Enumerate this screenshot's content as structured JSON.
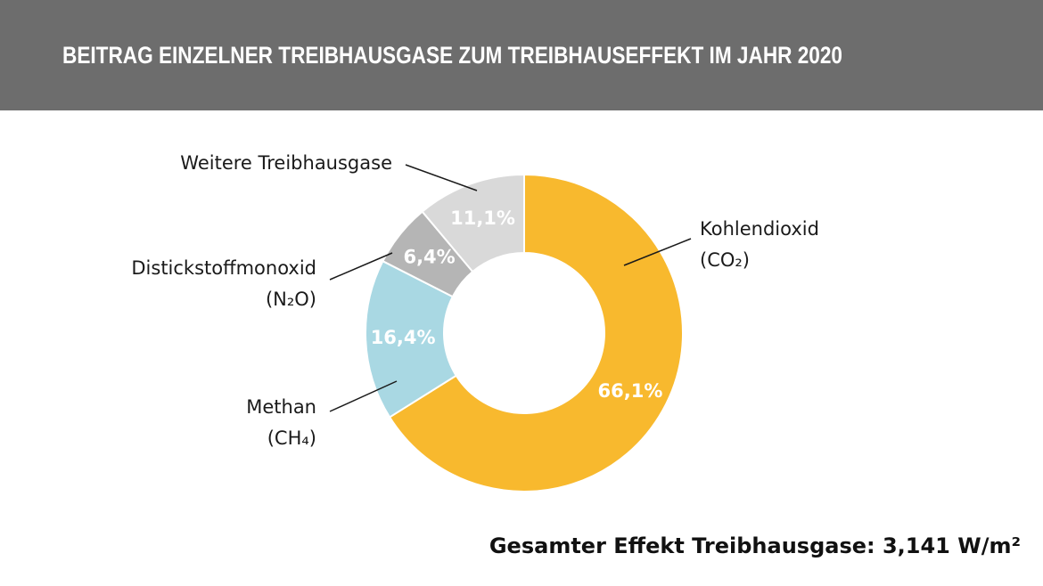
{
  "chart_data": {
    "type": "pie",
    "donut": true,
    "title": "BEITRAG EINZELNER TREIBHAUSGASE ZUM TREIBHAUSEFFEKT IM JAHR 2020",
    "categories": [
      [
        "Kohlendioxid",
        "(CO₂)"
      ],
      [
        "Methan",
        "(CH₄)"
      ],
      [
        "Distickstoffmonoxid",
        "(N₂O)"
      ],
      [
        "Weitere Treibhausgase"
      ]
    ],
    "values": [
      66.1,
      16.4,
      6.4,
      11.1
    ],
    "value_labels": [
      "66,1%",
      "16,4%",
      "6,4%",
      "11,1%"
    ],
    "colors": [
      "#f8b92e",
      "#a9d8e3",
      "#b5b5b5",
      "#d9d9d9"
    ],
    "note": "Gesamter Effekt Treibhausgase: 3,141 W/m²"
  }
}
